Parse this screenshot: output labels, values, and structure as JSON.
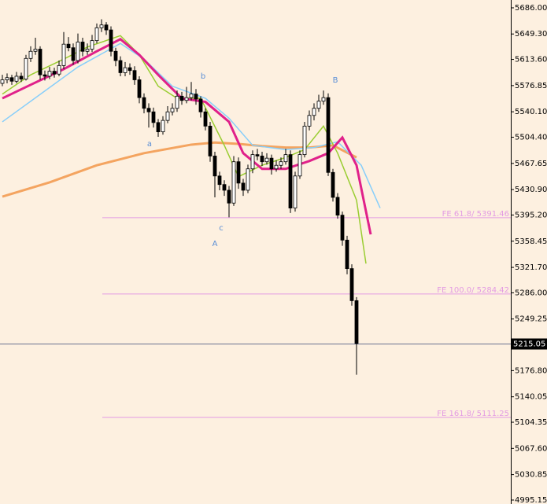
{
  "chart_data": {
    "type": "candlestick",
    "ylim": [
      4989.6,
      5697.0
    ],
    "yticks": [
      {
        "value": 5686,
        "label": "5686.00"
      },
      {
        "value": 5649.3,
        "label": "5649.30"
      },
      {
        "value": 5613.6,
        "label": "5613.60"
      },
      5576.85,
      {
        "value": 5540.1,
        "label": "5540.10"
      },
      {
        "value": 5504.4,
        "label": "5504.40"
      },
      5467.65,
      {
        "value": 5430.9,
        "label": "5430.90"
      },
      {
        "value": 5395.2,
        "label": "5395.20"
      },
      5358.45,
      {
        "value": 5321.7,
        "label": "5321.70"
      },
      {
        "value": 5286,
        "label": "5286.00"
      },
      5249.25,
      {
        "value": 5176.8,
        "label": "5176.80"
      },
      5140.05,
      5104.35,
      {
        "value": 5067.6,
        "label": "5067.60"
      },
      5030.85,
      4995.15
    ],
    "grid": false,
    "current_price": 5215.05,
    "candles": [
      [
        5580,
        5592,
        5576,
        5585
      ],
      [
        5585,
        5594,
        5580,
        5588
      ],
      [
        5588,
        5592,
        5578,
        5583
      ],
      [
        5583,
        5596,
        5580,
        5590
      ],
      [
        5590,
        5595,
        5582,
        5586
      ],
      [
        5586,
        5620,
        5584,
        5615
      ],
      [
        5615,
        5632,
        5610,
        5625
      ],
      [
        5625,
        5644,
        5620,
        5628
      ],
      [
        5628,
        5632,
        5585,
        5592
      ],
      [
        5592,
        5598,
        5584,
        5590
      ],
      [
        5590,
        5603,
        5586,
        5597
      ],
      [
        5597,
        5602,
        5588,
        5593
      ],
      [
        5593,
        5612,
        5590,
        5605
      ],
      [
        5605,
        5652,
        5600,
        5635
      ],
      [
        5635,
        5645,
        5625,
        5630
      ],
      [
        5630,
        5636,
        5606,
        5612
      ],
      [
        5612,
        5650,
        5608,
        5638
      ],
      [
        5638,
        5644,
        5618,
        5625
      ],
      [
        5625,
        5636,
        5620,
        5628
      ],
      [
        5628,
        5648,
        5624,
        5640
      ],
      [
        5640,
        5664,
        5636,
        5658
      ],
      [
        5658,
        5670,
        5652,
        5662
      ],
      [
        5662,
        5666,
        5648,
        5655
      ],
      [
        5655,
        5660,
        5618,
        5625
      ],
      [
        5625,
        5630,
        5604,
        5612
      ],
      [
        5612,
        5618,
        5590,
        5595
      ],
      [
        5595,
        5610,
        5590,
        5602
      ],
      [
        5602,
        5608,
        5592,
        5598
      ],
      [
        5598,
        5604,
        5578,
        5585
      ],
      [
        5585,
        5590,
        5552,
        5560
      ],
      [
        5560,
        5566,
        5538,
        5545
      ],
      [
        5545,
        5552,
        5518,
        5540
      ],
      [
        5540,
        5546,
        5518,
        5525
      ],
      [
        5525,
        5530,
        5505,
        5512
      ],
      [
        5512,
        5534,
        5508,
        5528
      ],
      [
        5528,
        5548,
        5524,
        5540
      ],
      [
        5540,
        5552,
        5535,
        5545
      ],
      [
        5545,
        5570,
        5540,
        5562
      ],
      [
        5562,
        5568,
        5550,
        5556
      ],
      [
        5556,
        5575,
        5552,
        5560
      ],
      [
        5560,
        5582,
        5556,
        5565
      ],
      [
        5565,
        5572,
        5550,
        5558
      ],
      [
        5558,
        5562,
        5532,
        5540
      ],
      [
        5540,
        5545,
        5514,
        5520
      ],
      [
        5520,
        5526,
        5470,
        5478
      ],
      [
        5478,
        5484,
        5420,
        5450
      ],
      [
        5450,
        5456,
        5430,
        5438
      ],
      [
        5438,
        5444,
        5422,
        5430
      ],
      [
        5430,
        5436,
        5392,
        5412
      ],
      [
        5412,
        5478,
        5408,
        5470
      ],
      [
        5470,
        5476,
        5432,
        5440
      ],
      [
        5440,
        5446,
        5422,
        5430
      ],
      [
        5430,
        5466,
        5426,
        5460
      ],
      [
        5460,
        5486,
        5454,
        5480
      ],
      [
        5480,
        5488,
        5472,
        5478
      ],
      [
        5478,
        5484,
        5464,
        5470
      ],
      [
        5470,
        5482,
        5466,
        5475
      ],
      [
        5475,
        5480,
        5452,
        5460
      ],
      [
        5460,
        5472,
        5456,
        5465
      ],
      [
        5465,
        5476,
        5460,
        5470
      ],
      [
        5470,
        5488,
        5466,
        5480
      ],
      [
        5480,
        5486,
        5398,
        5405
      ],
      [
        5405,
        5456,
        5400,
        5450
      ],
      [
        5450,
        5486,
        5446,
        5480
      ],
      [
        5480,
        5526,
        5476,
        5520
      ],
      [
        5520,
        5542,
        5514,
        5535
      ],
      [
        5535,
        5552,
        5528,
        5545
      ],
      [
        5545,
        5564,
        5540,
        5555
      ],
      [
        5555,
        5570,
        5550,
        5560
      ],
      [
        5560,
        5566,
        5450,
        5455
      ],
      [
        5455,
        5460,
        5414,
        5420
      ],
      [
        5420,
        5426,
        5390,
        5395
      ],
      [
        5395,
        5400,
        5352,
        5360
      ],
      [
        5360,
        5366,
        5312,
        5320
      ],
      [
        5320,
        5326,
        5268,
        5275
      ],
      [
        5275,
        5280,
        5171,
        5215
      ]
    ],
    "series": [
      {
        "color": "#f4a460",
        "x": [
          0,
          10,
          20,
          30,
          40,
          45,
          50,
          55,
          60,
          65,
          70,
          75
        ],
        "values": [
          5421,
          5441,
          5465,
          5482,
          5494,
          5497,
          5495,
          5492,
          5490,
          5490,
          5493,
          5476
        ]
      },
      {
        "color": "#87cefa",
        "x": [
          0,
          16,
          25,
          30,
          36,
          43,
          48,
          53,
          60,
          66,
          71,
          76,
          80
        ],
        "values": [
          5526,
          5603,
          5636,
          5614,
          5576,
          5559,
          5531,
          5493,
          5487,
          5490,
          5498,
          5465,
          5405
        ]
      },
      {
        "color": "#9acd32",
        "x": [
          0,
          6,
          13,
          18,
          25,
          29,
          33,
          37,
          42,
          47,
          50,
          55,
          60,
          64,
          68,
          71,
          75,
          77
        ],
        "values": [
          5565,
          5592,
          5614,
          5631,
          5647,
          5620,
          5576,
          5559,
          5559,
          5493,
          5449,
          5465,
          5476,
          5487,
          5520,
          5482,
          5416,
          5327
        ]
      },
      {
        "color": "#e0218a",
        "x": [
          0,
          6,
          13,
          20,
          25,
          29,
          33,
          38,
          43,
          48,
          51,
          55,
          60,
          65,
          69,
          72,
          75,
          78
        ],
        "values": [
          5559,
          5578,
          5600,
          5625,
          5642,
          5620,
          5592,
          5559,
          5554,
          5526,
          5482,
          5460,
          5460,
          5471,
          5482,
          5504,
          5465,
          5368
        ]
      }
    ],
    "fibo": [
      {
        "label": "FE 61.8/ 5391.46",
        "value": 5391.46
      },
      {
        "label": "FE 100.0/ 5284.42",
        "value": 5284.42
      },
      {
        "label": "FE 161.8/ 5111.25",
        "value": 5111.25
      }
    ],
    "wave_labels": [
      "b",
      "a",
      "c",
      "A",
      "B"
    ]
  }
}
